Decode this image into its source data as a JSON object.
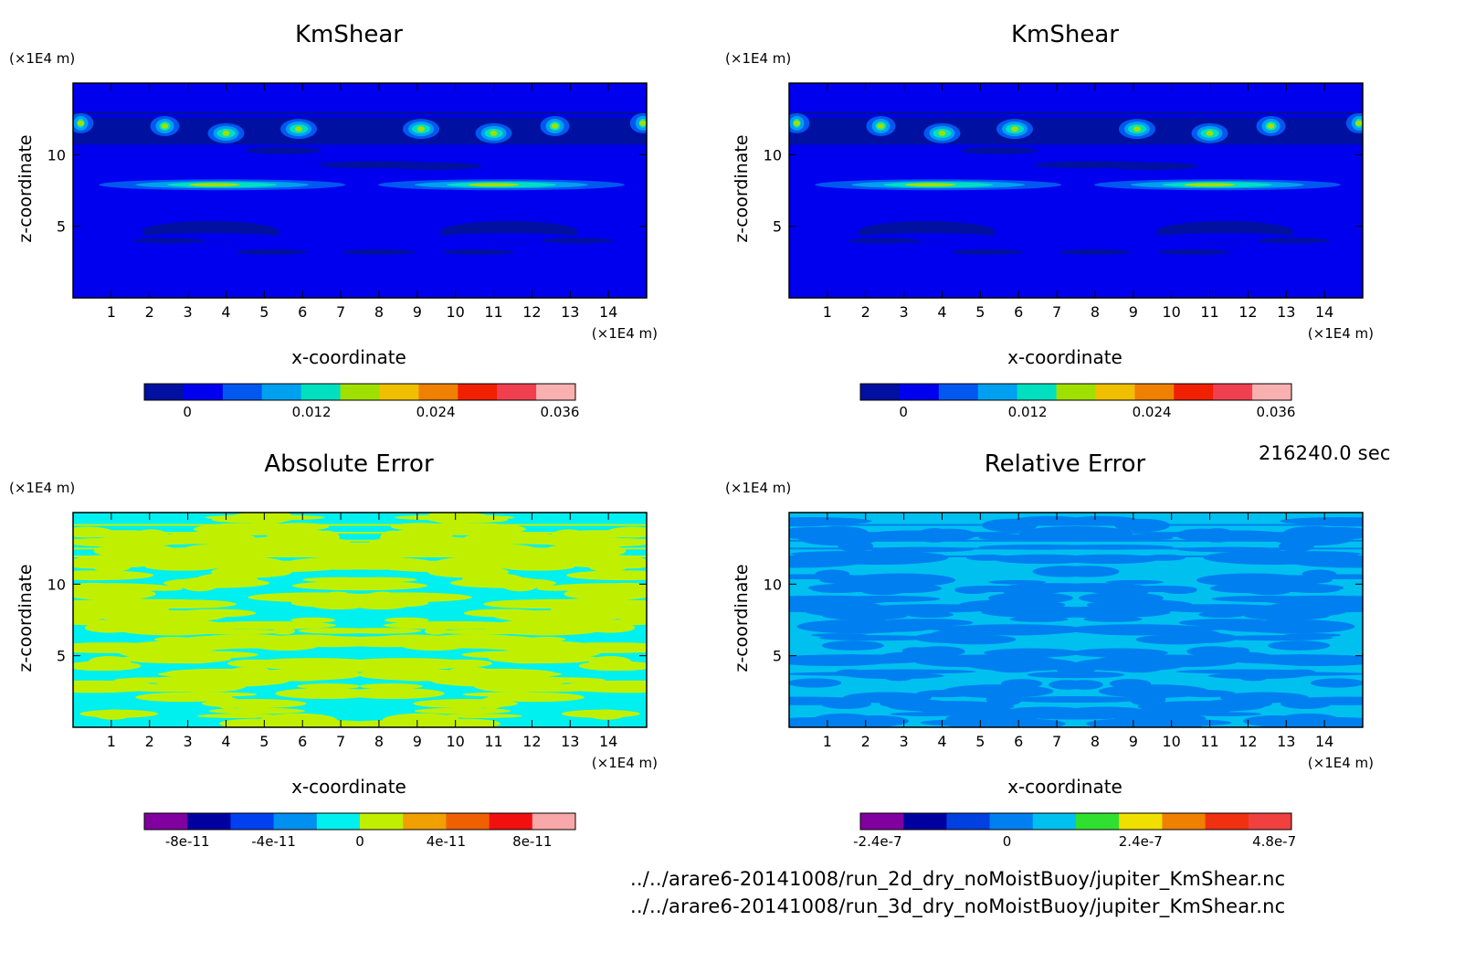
{
  "time_label": "216240.0 sec",
  "files": [
    "../../arare6-20141008/run_2d_dry_noMoistBuoy/jupiter_KmShear.nc",
    "../../arare6-20141008/run_3d_dry_noMoistBuoy/jupiter_KmShear.nc"
  ],
  "chart_data": [
    {
      "type": "heatmap",
      "title": "KmShear",
      "xlabel": "x-coordinate",
      "ylabel": "z-coordinate",
      "x_unit": "(×1E4 m)",
      "y_unit": "(×1E4 m)",
      "xlim": [
        0,
        15
      ],
      "ylim": [
        0,
        15
      ],
      "xticks": [
        "1",
        "2",
        "3",
        "4",
        "5",
        "6",
        "7",
        "8",
        "9",
        "10",
        "11",
        "12",
        "13",
        "14"
      ],
      "yticks": [
        "5",
        "10"
      ],
      "colorbar": {
        "levels": 11,
        "ticks": [
          "0",
          "0.012",
          "0.024",
          "0.036"
        ],
        "colors": [
          "#0010a0",
          "#0000ef",
          "#0058f0",
          "#00a0f0",
          "#00e0c0",
          "#a0e000",
          "#f0c000",
          "#f08000",
          "#f02000",
          "#f04050",
          "#f8b0b0"
        ]
      },
      "background_color": "#0000ef",
      "features": [
        {
          "shape": "low band",
          "z": 11.5
        },
        {
          "shape": "peak band",
          "z": 8
        },
        {
          "shape": "low arc",
          "z": 5
        },
        {
          "shape": "peak blobs",
          "z": 12
        }
      ]
    },
    {
      "type": "heatmap",
      "title": "KmShear",
      "xlabel": "x-coordinate",
      "ylabel": "z-coordinate",
      "x_unit": "(×1E4 m)",
      "y_unit": "(×1E4 m)",
      "xlim": [
        0,
        15
      ],
      "ylim": [
        0,
        15
      ],
      "xticks": [
        "1",
        "2",
        "3",
        "4",
        "5",
        "6",
        "7",
        "8",
        "9",
        "10",
        "11",
        "12",
        "13",
        "14"
      ],
      "yticks": [
        "5",
        "10"
      ],
      "colorbar": {
        "levels": 11,
        "ticks": [
          "0",
          "0.012",
          "0.024",
          "0.036"
        ],
        "colors": [
          "#0010a0",
          "#0000ef",
          "#0058f0",
          "#00a0f0",
          "#00e0c0",
          "#a0e000",
          "#f0c000",
          "#f08000",
          "#f02000",
          "#f04050",
          "#f8b0b0"
        ]
      },
      "background_color": "#0000ef"
    },
    {
      "type": "heatmap",
      "title": "Absolute Error",
      "xlabel": "x-coordinate",
      "ylabel": "z-coordinate",
      "x_unit": "(×1E4 m)",
      "y_unit": "(×1E4 m)",
      "xlim": [
        0,
        15
      ],
      "ylim": [
        0,
        15
      ],
      "xticks": [
        "1",
        "2",
        "3",
        "4",
        "5",
        "6",
        "7",
        "8",
        "9",
        "10",
        "11",
        "12",
        "13",
        "14"
      ],
      "yticks": [
        "5",
        "10"
      ],
      "colorbar": {
        "levels": 10,
        "ticks": [
          "-8e-11",
          "-4e-11",
          "0",
          "4e-11",
          "8e-11"
        ],
        "colors": [
          "#8000a0",
          "#0000a0",
          "#0040f0",
          "#0090f0",
          "#00f0f0",
          "#c0f000",
          "#f0a000",
          "#f06000",
          "#f01010",
          "#f8a8a8"
        ]
      },
      "background_color": "#00f0f0",
      "pattern_color": "#c0f000"
    },
    {
      "type": "heatmap",
      "title": "Relative Error",
      "xlabel": "x-coordinate",
      "ylabel": "z-coordinate",
      "x_unit": "(×1E4 m)",
      "y_unit": "(×1E4 m)",
      "xlim": [
        0,
        15
      ],
      "ylim": [
        0,
        15
      ],
      "xticks": [
        "1",
        "2",
        "3",
        "4",
        "5",
        "6",
        "7",
        "8",
        "9",
        "10",
        "11",
        "12",
        "13",
        "14"
      ],
      "yticks": [
        "5",
        "10"
      ],
      "colorbar": {
        "levels": 10,
        "ticks": [
          "-2.4e-7",
          "0",
          "2.4e-7",
          "4.8e-7"
        ],
        "colors": [
          "#8000a0",
          "#0000a0",
          "#0040e0",
          "#0080f0",
          "#00c0f0",
          "#30e030",
          "#f0e000",
          "#f08000",
          "#f03010",
          "#f04040"
        ]
      },
      "background_color": "#00c0f0",
      "pattern_color": "#0080f0"
    }
  ]
}
